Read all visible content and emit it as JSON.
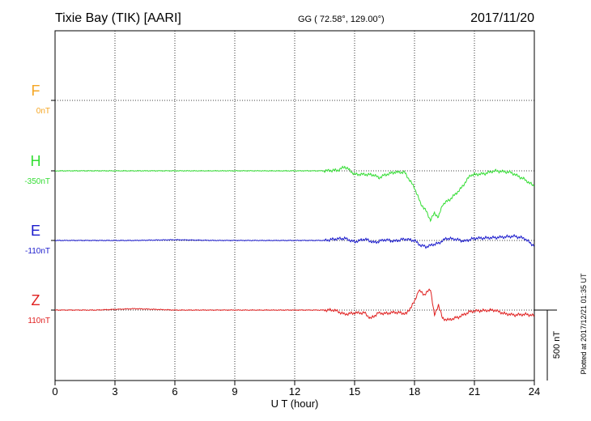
{
  "header": {
    "station": "Tixie Bay (TIK)  [AARI]",
    "coords": "GG ( 72.58°, 129.00°)",
    "date": "2017/11/20"
  },
  "side_note": "Plotted at 2017/12/21 01:35 UT",
  "scale_label": "500 nT",
  "chart_data": {
    "type": "line",
    "xlabel": "U T (hour)",
    "xlim": [
      0,
      24
    ],
    "xticks": [
      0,
      3,
      6,
      9,
      12,
      15,
      18,
      21,
      24
    ],
    "grid": true,
    "scale_bar_nT": 500,
    "series": [
      {
        "name": "F",
        "baseline": "0nT",
        "color": "#f5a623",
        "x": [],
        "y": []
      },
      {
        "name": "H",
        "baseline": "-350nT",
        "color": "#33dd33",
        "x": [
          0,
          2,
          4,
          6,
          8,
          10,
          12,
          13.5,
          14.2,
          14.5,
          14.7,
          15.0,
          15.5,
          16.0,
          16.2,
          16.5,
          17.0,
          17.5,
          18.0,
          18.3,
          18.6,
          18.8,
          19.0,
          19.2,
          19.4,
          19.8,
          20.3,
          20.8,
          21.5,
          22.0,
          22.8,
          23.5,
          24.0
        ],
        "y": [
          0,
          0,
          0,
          0,
          0,
          0,
          0,
          0,
          5,
          30,
          10,
          -25,
          -25,
          -30,
          -50,
          -30,
          -10,
          -10,
          -120,
          -230,
          -290,
          -350,
          -300,
          -330,
          -240,
          -200,
          -130,
          -30,
          -20,
          0,
          -10,
          -60,
          -110
        ]
      },
      {
        "name": "E",
        "baseline": "-110nT",
        "color": "#1a1acc",
        "x": [
          0,
          2,
          4,
          6,
          8,
          10,
          12,
          13.5,
          14.0,
          14.5,
          15.0,
          15.5,
          16.0,
          16.5,
          17.0,
          17.5,
          18.0,
          18.3,
          18.6,
          18.9,
          19.2,
          19.6,
          20.0,
          20.5,
          21.0,
          22.0,
          23.0,
          23.5,
          24.0
        ],
        "y": [
          0,
          0,
          0,
          5,
          0,
          0,
          0,
          0,
          10,
          15,
          -10,
          10,
          -15,
          5,
          -5,
          10,
          0,
          -35,
          -45,
          -30,
          -20,
          15,
          10,
          -5,
          15,
          20,
          30,
          15,
          -40
        ]
      },
      {
        "name": "Z",
        "baseline": "110nT",
        "color": "#e02020",
        "x": [
          0,
          2,
          4,
          6,
          8,
          10,
          12,
          13.5,
          14.0,
          14.5,
          15.0,
          15.5,
          15.8,
          16.0,
          16.2,
          16.5,
          17.0,
          17.6,
          18.0,
          18.2,
          18.5,
          18.8,
          19.0,
          19.2,
          19.4,
          19.7,
          20.2,
          20.8,
          21.2,
          22.0,
          22.5,
          23.0,
          23.6,
          24.0
        ],
        "y": [
          0,
          0,
          10,
          0,
          0,
          0,
          0,
          0,
          0,
          -30,
          -20,
          -20,
          -60,
          -40,
          -20,
          -25,
          -15,
          -25,
          60,
          140,
          110,
          150,
          -40,
          40,
          -60,
          -70,
          -50,
          -10,
          -5,
          0,
          -25,
          -35,
          -30,
          -40
        ]
      }
    ]
  }
}
